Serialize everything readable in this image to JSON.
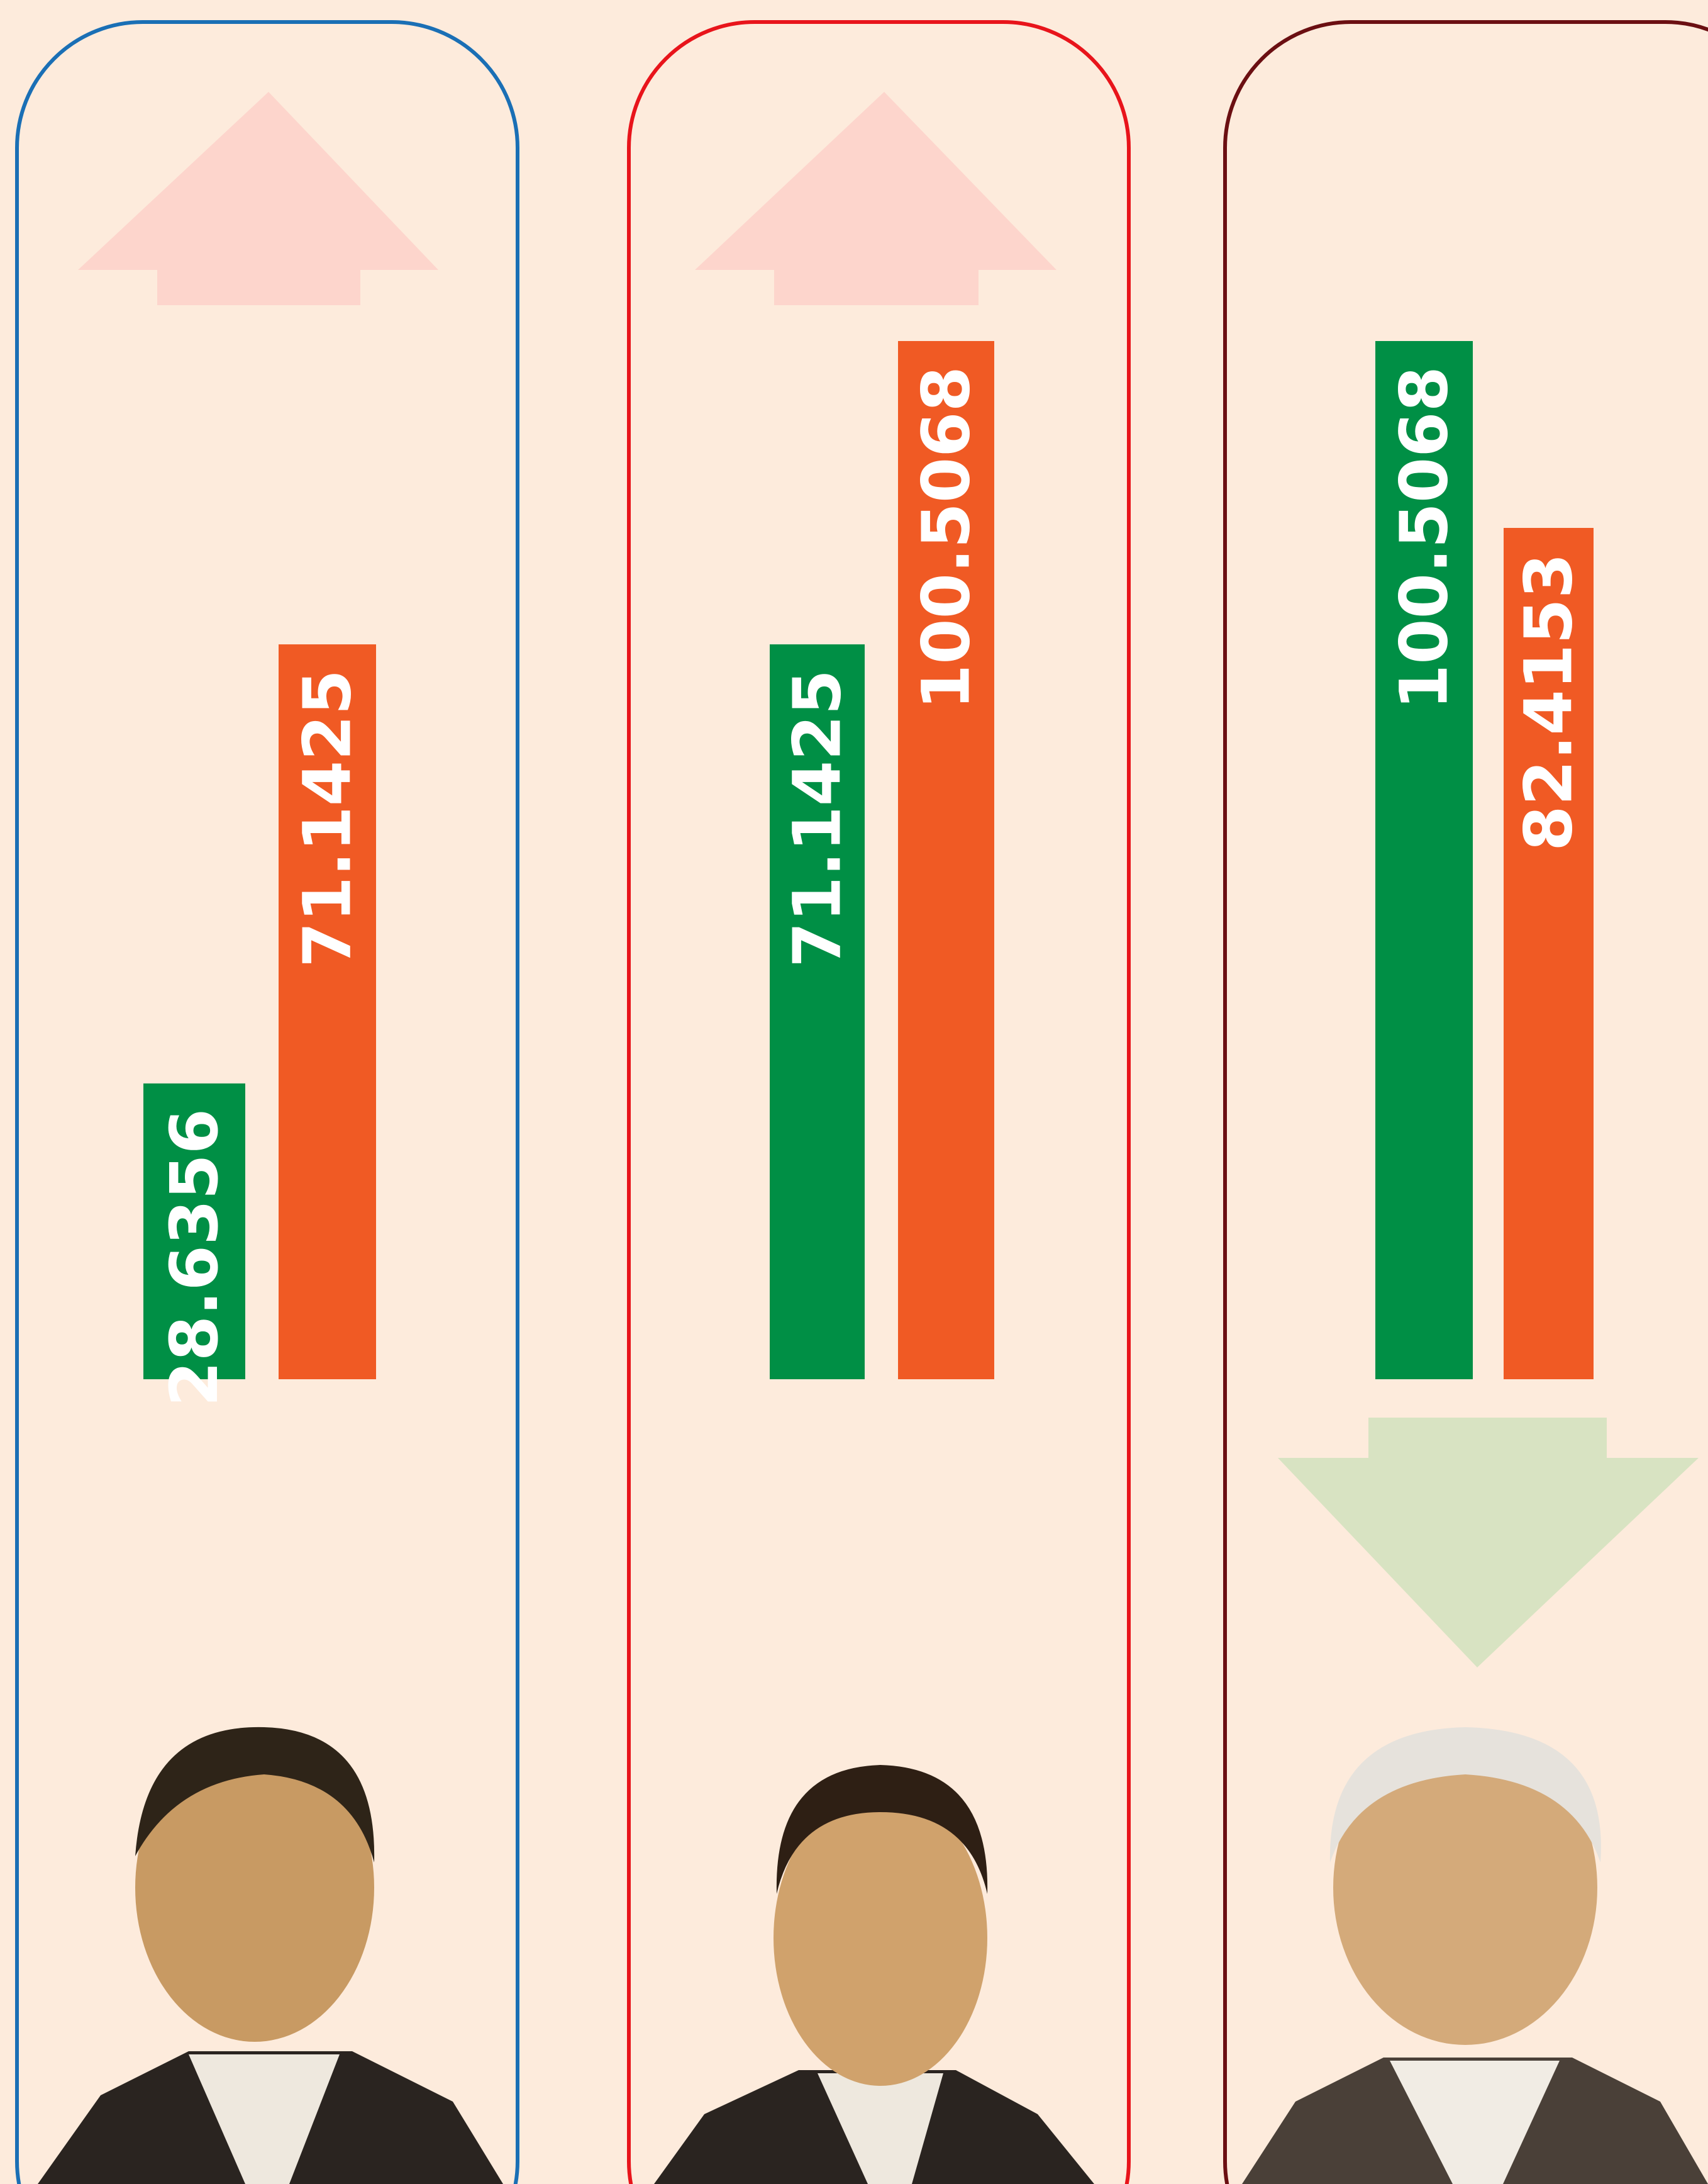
{
  "chart_data": [
    {
      "type": "bar",
      "values": [
        28.6356,
        71.1425
      ],
      "colors": [
        "#008f45",
        "#f05a24"
      ]
    },
    {
      "type": "bar",
      "values": [
        71.1425,
        100.5068
      ],
      "colors": [
        "#008f45",
        "#f05a24"
      ]
    },
    {
      "type": "bar",
      "values": [
        100.5068,
        82.4153
      ],
      "colors": [
        "#008f45",
        "#f05a24"
      ]
    }
  ]
}
